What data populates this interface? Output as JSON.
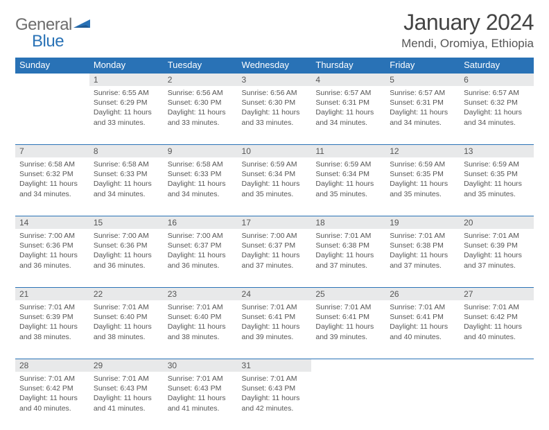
{
  "brand": {
    "part1": "General",
    "part2": "Blue"
  },
  "title": "January 2024",
  "location": "Mendi, Oromiya, Ethiopia",
  "colors": {
    "header_bg": "#2972b6",
    "header_text": "#ffffff",
    "daynum_bg": "#e8e9ea",
    "rule": "#2972b6",
    "body_text": "#555555",
    "page_bg": "#ffffff"
  },
  "typography": {
    "title_fontsize": 32,
    "location_fontsize": 17,
    "weekday_fontsize": 13,
    "daynum_fontsize": 12,
    "body_fontsize": 10.5
  },
  "weekdays": [
    "Sunday",
    "Monday",
    "Tuesday",
    "Wednesday",
    "Thursday",
    "Friday",
    "Saturday"
  ],
  "weeks": [
    [
      {
        "n": "",
        "sunrise": "",
        "sunset": "",
        "daylight": ""
      },
      {
        "n": "1",
        "sunrise": "Sunrise: 6:55 AM",
        "sunset": "Sunset: 6:29 PM",
        "daylight": "Daylight: 11 hours and 33 minutes."
      },
      {
        "n": "2",
        "sunrise": "Sunrise: 6:56 AM",
        "sunset": "Sunset: 6:30 PM",
        "daylight": "Daylight: 11 hours and 33 minutes."
      },
      {
        "n": "3",
        "sunrise": "Sunrise: 6:56 AM",
        "sunset": "Sunset: 6:30 PM",
        "daylight": "Daylight: 11 hours and 33 minutes."
      },
      {
        "n": "4",
        "sunrise": "Sunrise: 6:57 AM",
        "sunset": "Sunset: 6:31 PM",
        "daylight": "Daylight: 11 hours and 34 minutes."
      },
      {
        "n": "5",
        "sunrise": "Sunrise: 6:57 AM",
        "sunset": "Sunset: 6:31 PM",
        "daylight": "Daylight: 11 hours and 34 minutes."
      },
      {
        "n": "6",
        "sunrise": "Sunrise: 6:57 AM",
        "sunset": "Sunset: 6:32 PM",
        "daylight": "Daylight: 11 hours and 34 minutes."
      }
    ],
    [
      {
        "n": "7",
        "sunrise": "Sunrise: 6:58 AM",
        "sunset": "Sunset: 6:32 PM",
        "daylight": "Daylight: 11 hours and 34 minutes."
      },
      {
        "n": "8",
        "sunrise": "Sunrise: 6:58 AM",
        "sunset": "Sunset: 6:33 PM",
        "daylight": "Daylight: 11 hours and 34 minutes."
      },
      {
        "n": "9",
        "sunrise": "Sunrise: 6:58 AM",
        "sunset": "Sunset: 6:33 PM",
        "daylight": "Daylight: 11 hours and 34 minutes."
      },
      {
        "n": "10",
        "sunrise": "Sunrise: 6:59 AM",
        "sunset": "Sunset: 6:34 PM",
        "daylight": "Daylight: 11 hours and 35 minutes."
      },
      {
        "n": "11",
        "sunrise": "Sunrise: 6:59 AM",
        "sunset": "Sunset: 6:34 PM",
        "daylight": "Daylight: 11 hours and 35 minutes."
      },
      {
        "n": "12",
        "sunrise": "Sunrise: 6:59 AM",
        "sunset": "Sunset: 6:35 PM",
        "daylight": "Daylight: 11 hours and 35 minutes."
      },
      {
        "n": "13",
        "sunrise": "Sunrise: 6:59 AM",
        "sunset": "Sunset: 6:35 PM",
        "daylight": "Daylight: 11 hours and 35 minutes."
      }
    ],
    [
      {
        "n": "14",
        "sunrise": "Sunrise: 7:00 AM",
        "sunset": "Sunset: 6:36 PM",
        "daylight": "Daylight: 11 hours and 36 minutes."
      },
      {
        "n": "15",
        "sunrise": "Sunrise: 7:00 AM",
        "sunset": "Sunset: 6:36 PM",
        "daylight": "Daylight: 11 hours and 36 minutes."
      },
      {
        "n": "16",
        "sunrise": "Sunrise: 7:00 AM",
        "sunset": "Sunset: 6:37 PM",
        "daylight": "Daylight: 11 hours and 36 minutes."
      },
      {
        "n": "17",
        "sunrise": "Sunrise: 7:00 AM",
        "sunset": "Sunset: 6:37 PM",
        "daylight": "Daylight: 11 hours and 37 minutes."
      },
      {
        "n": "18",
        "sunrise": "Sunrise: 7:01 AM",
        "sunset": "Sunset: 6:38 PM",
        "daylight": "Daylight: 11 hours and 37 minutes."
      },
      {
        "n": "19",
        "sunrise": "Sunrise: 7:01 AM",
        "sunset": "Sunset: 6:38 PM",
        "daylight": "Daylight: 11 hours and 37 minutes."
      },
      {
        "n": "20",
        "sunrise": "Sunrise: 7:01 AM",
        "sunset": "Sunset: 6:39 PM",
        "daylight": "Daylight: 11 hours and 37 minutes."
      }
    ],
    [
      {
        "n": "21",
        "sunrise": "Sunrise: 7:01 AM",
        "sunset": "Sunset: 6:39 PM",
        "daylight": "Daylight: 11 hours and 38 minutes."
      },
      {
        "n": "22",
        "sunrise": "Sunrise: 7:01 AM",
        "sunset": "Sunset: 6:40 PM",
        "daylight": "Daylight: 11 hours and 38 minutes."
      },
      {
        "n": "23",
        "sunrise": "Sunrise: 7:01 AM",
        "sunset": "Sunset: 6:40 PM",
        "daylight": "Daylight: 11 hours and 38 minutes."
      },
      {
        "n": "24",
        "sunrise": "Sunrise: 7:01 AM",
        "sunset": "Sunset: 6:41 PM",
        "daylight": "Daylight: 11 hours and 39 minutes."
      },
      {
        "n": "25",
        "sunrise": "Sunrise: 7:01 AM",
        "sunset": "Sunset: 6:41 PM",
        "daylight": "Daylight: 11 hours and 39 minutes."
      },
      {
        "n": "26",
        "sunrise": "Sunrise: 7:01 AM",
        "sunset": "Sunset: 6:41 PM",
        "daylight": "Daylight: 11 hours and 40 minutes."
      },
      {
        "n": "27",
        "sunrise": "Sunrise: 7:01 AM",
        "sunset": "Sunset: 6:42 PM",
        "daylight": "Daylight: 11 hours and 40 minutes."
      }
    ],
    [
      {
        "n": "28",
        "sunrise": "Sunrise: 7:01 AM",
        "sunset": "Sunset: 6:42 PM",
        "daylight": "Daylight: 11 hours and 40 minutes."
      },
      {
        "n": "29",
        "sunrise": "Sunrise: 7:01 AM",
        "sunset": "Sunset: 6:43 PM",
        "daylight": "Daylight: 11 hours and 41 minutes."
      },
      {
        "n": "30",
        "sunrise": "Sunrise: 7:01 AM",
        "sunset": "Sunset: 6:43 PM",
        "daylight": "Daylight: 11 hours and 41 minutes."
      },
      {
        "n": "31",
        "sunrise": "Sunrise: 7:01 AM",
        "sunset": "Sunset: 6:43 PM",
        "daylight": "Daylight: 11 hours and 42 minutes."
      },
      {
        "n": "",
        "sunrise": "",
        "sunset": "",
        "daylight": ""
      },
      {
        "n": "",
        "sunrise": "",
        "sunset": "",
        "daylight": ""
      },
      {
        "n": "",
        "sunrise": "",
        "sunset": "",
        "daylight": ""
      }
    ]
  ]
}
